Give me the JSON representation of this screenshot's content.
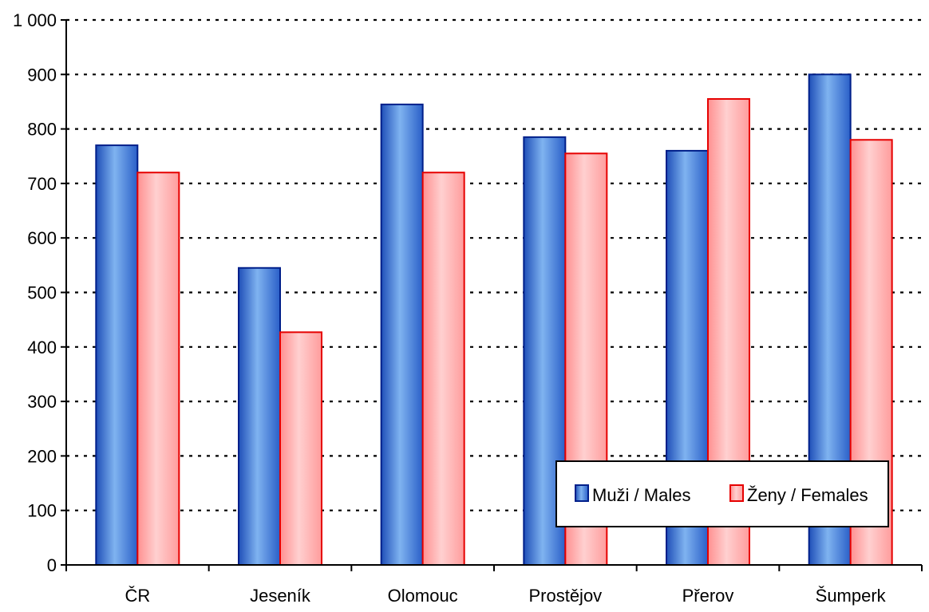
{
  "chart_data": {
    "type": "bar",
    "categories": [
      "ČR",
      "Jeseník",
      "Olomouc",
      "Prostějov",
      "Přerov",
      "Šumperk"
    ],
    "series": [
      {
        "name": "Muži / Males",
        "values": [
          770,
          545,
          845,
          785,
          760,
          900
        ],
        "color": "#4a86d8",
        "stroke": "#001f8a"
      },
      {
        "name": "Ženy / Females",
        "values": [
          720,
          427,
          720,
          755,
          855,
          780
        ],
        "color": "#ffb0b0",
        "stroke": "#e60000"
      }
    ],
    "title": "",
    "xlabel": "",
    "ylabel": "",
    "ylim": [
      0,
      1000
    ],
    "yticks": [
      0,
      100,
      200,
      300,
      400,
      500,
      600,
      700,
      800,
      900,
      1000
    ],
    "ytick_labels": [
      "0",
      "100",
      "200",
      "300",
      "400",
      "500",
      "600",
      "700",
      "800",
      "900",
      "1 000"
    ],
    "grid": true,
    "legend_position": "bottom-right"
  }
}
